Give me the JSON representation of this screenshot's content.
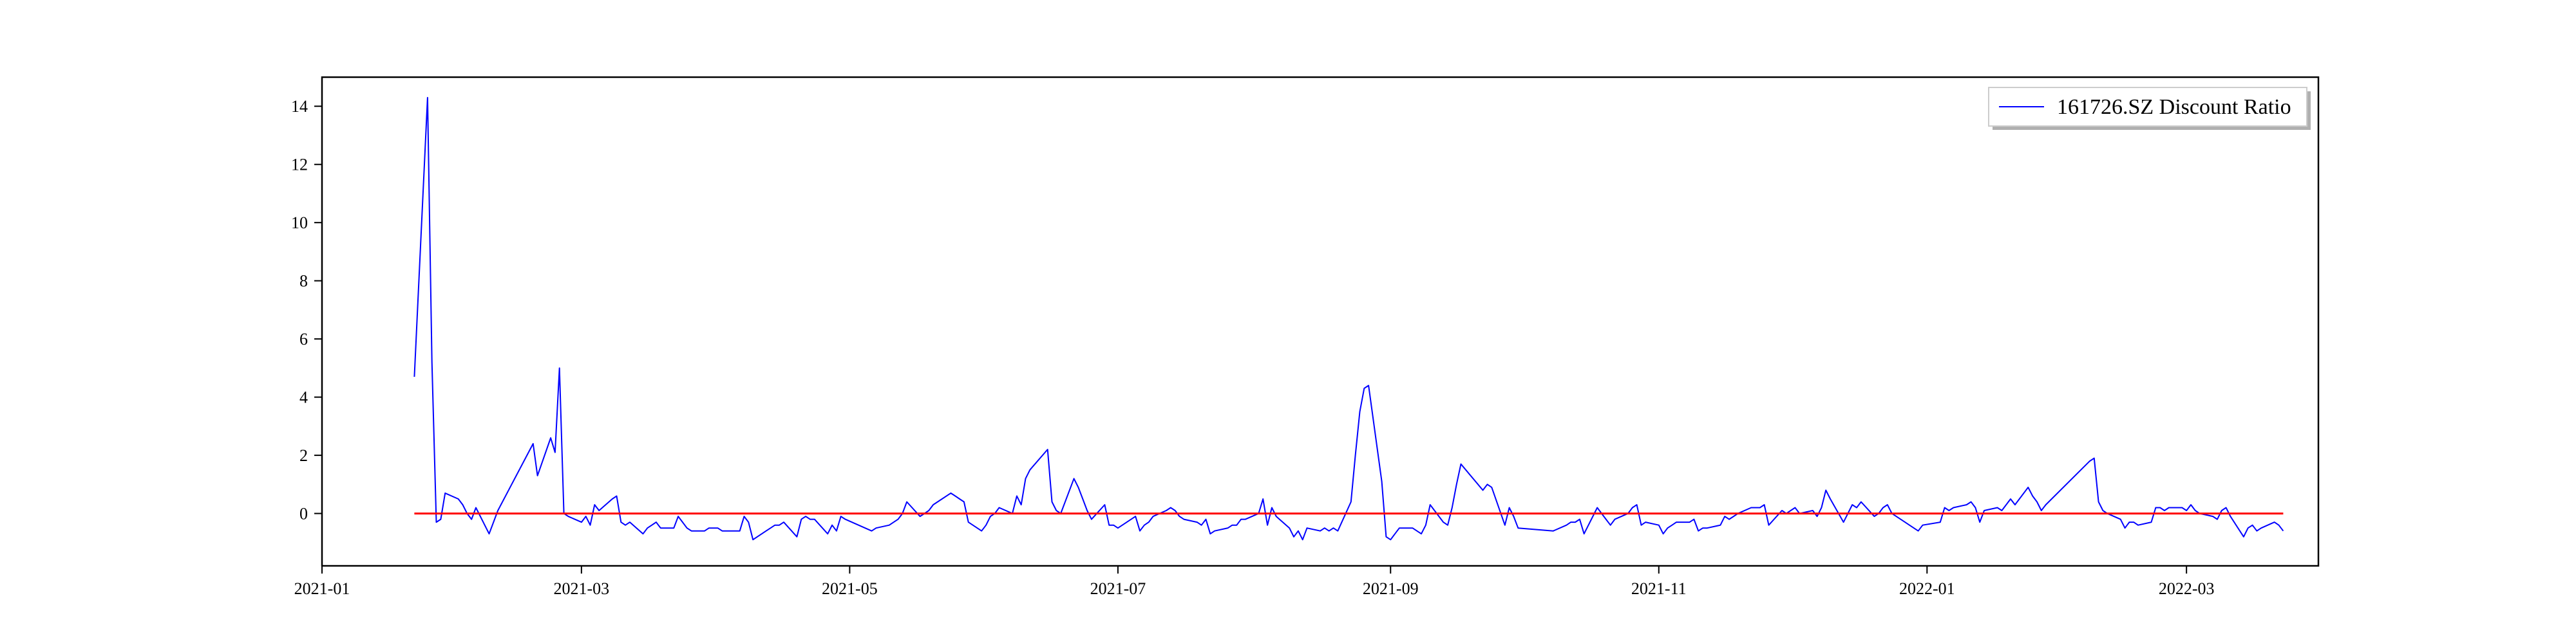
{
  "chart_data": {
    "type": "line",
    "title": "",
    "xlabel": "",
    "ylabel": "",
    "xlim": [
      "2021-01-01",
      "2022-03-31"
    ],
    "ylim": [
      -1.8,
      15
    ],
    "x_ticks": [
      "2021-01",
      "2021-03",
      "2021-05",
      "2021-07",
      "2021-09",
      "2021-11",
      "2022-01",
      "2022-03"
    ],
    "y_ticks": [
      0,
      2,
      4,
      6,
      8,
      10,
      12,
      14
    ],
    "legend": {
      "position": "top-right",
      "entries": [
        "161726.SZ Discount Ratio"
      ]
    },
    "grid": false,
    "series": [
      {
        "name": "161726.SZ Discount Ratio",
        "color": "#0000ff",
        "points": [
          [
            "2021-01-22",
            4.7
          ],
          [
            "2021-01-25",
            14.3
          ],
          [
            "2021-01-26",
            5.2
          ],
          [
            "2021-01-27",
            -0.3
          ],
          [
            "2021-01-28",
            -0.2
          ],
          [
            "2021-01-29",
            0.7
          ],
          [
            "2021-02-01",
            0.5
          ],
          [
            "2021-02-02",
            0.3
          ],
          [
            "2021-02-03",
            0.0
          ],
          [
            "2021-02-04",
            -0.2
          ],
          [
            "2021-02-05",
            0.2
          ],
          [
            "2021-02-08",
            -0.7
          ],
          [
            "2021-02-09",
            -0.3
          ],
          [
            "2021-02-10",
            0.1
          ],
          [
            "2021-02-18",
            2.4
          ],
          [
            "2021-02-19",
            1.3
          ],
          [
            "2021-02-22",
            2.6
          ],
          [
            "2021-02-23",
            2.1
          ],
          [
            "2021-02-24",
            5.0
          ],
          [
            "2021-02-25",
            0.0
          ],
          [
            "2021-02-26",
            -0.1
          ],
          [
            "2021-03-01",
            -0.3
          ],
          [
            "2021-03-02",
            -0.1
          ],
          [
            "2021-03-03",
            -0.4
          ],
          [
            "2021-03-04",
            0.3
          ],
          [
            "2021-03-05",
            0.1
          ],
          [
            "2021-03-08",
            0.5
          ],
          [
            "2021-03-09",
            0.6
          ],
          [
            "2021-03-10",
            -0.3
          ],
          [
            "2021-03-11",
            -0.4
          ],
          [
            "2021-03-12",
            -0.3
          ],
          [
            "2021-03-15",
            -0.7
          ],
          [
            "2021-03-16",
            -0.5
          ],
          [
            "2021-03-17",
            -0.4
          ],
          [
            "2021-03-18",
            -0.3
          ],
          [
            "2021-03-19",
            -0.5
          ],
          [
            "2021-03-22",
            -0.5
          ],
          [
            "2021-03-23",
            -0.1
          ],
          [
            "2021-03-24",
            -0.3
          ],
          [
            "2021-03-25",
            -0.5
          ],
          [
            "2021-03-26",
            -0.6
          ],
          [
            "2021-03-29",
            -0.6
          ],
          [
            "2021-03-30",
            -0.5
          ],
          [
            "2021-03-31",
            -0.5
          ],
          [
            "2021-04-01",
            -0.5
          ],
          [
            "2021-04-02",
            -0.6
          ],
          [
            "2021-04-06",
            -0.6
          ],
          [
            "2021-04-07",
            -0.1
          ],
          [
            "2021-04-08",
            -0.3
          ],
          [
            "2021-04-09",
            -0.9
          ],
          [
            "2021-04-12",
            -0.6
          ],
          [
            "2021-04-13",
            -0.5
          ],
          [
            "2021-04-14",
            -0.4
          ],
          [
            "2021-04-15",
            -0.4
          ],
          [
            "2021-04-16",
            -0.3
          ],
          [
            "2021-04-19",
            -0.8
          ],
          [
            "2021-04-20",
            -0.2
          ],
          [
            "2021-04-21",
            -0.1
          ],
          [
            "2021-04-22",
            -0.2
          ],
          [
            "2021-04-23",
            -0.2
          ],
          [
            "2021-04-26",
            -0.7
          ],
          [
            "2021-04-27",
            -0.4
          ],
          [
            "2021-04-28",
            -0.6
          ],
          [
            "2021-04-29",
            -0.1
          ],
          [
            "2021-04-30",
            -0.2
          ],
          [
            "2021-05-06",
            -0.6
          ],
          [
            "2021-05-07",
            -0.5
          ],
          [
            "2021-05-10",
            -0.4
          ],
          [
            "2021-05-11",
            -0.3
          ],
          [
            "2021-05-12",
            -0.2
          ],
          [
            "2021-05-13",
            0.0
          ],
          [
            "2021-05-14",
            0.4
          ],
          [
            "2021-05-17",
            -0.1
          ],
          [
            "2021-05-18",
            0.0
          ],
          [
            "2021-05-19",
            0.1
          ],
          [
            "2021-05-20",
            0.3
          ],
          [
            "2021-05-21",
            0.4
          ],
          [
            "2021-05-24",
            0.7
          ],
          [
            "2021-05-25",
            0.6
          ],
          [
            "2021-05-26",
            0.5
          ],
          [
            "2021-05-27",
            0.4
          ],
          [
            "2021-05-28",
            -0.3
          ],
          [
            "2021-05-31",
            -0.6
          ],
          [
            "2021-06-01",
            -0.4
          ],
          [
            "2021-06-02",
            -0.1
          ],
          [
            "2021-06-03",
            0.0
          ],
          [
            "2021-06-04",
            0.2
          ],
          [
            "2021-06-07",
            0.0
          ],
          [
            "2021-06-08",
            0.6
          ],
          [
            "2021-06-09",
            0.3
          ],
          [
            "2021-06-10",
            1.2
          ],
          [
            "2021-06-11",
            1.5
          ],
          [
            "2021-06-15",
            2.2
          ],
          [
            "2021-06-16",
            0.4
          ],
          [
            "2021-06-17",
            0.1
          ],
          [
            "2021-06-18",
            0.0
          ],
          [
            "2021-06-21",
            1.2
          ],
          [
            "2021-06-22",
            0.9
          ],
          [
            "2021-06-23",
            0.5
          ],
          [
            "2021-06-24",
            0.1
          ],
          [
            "2021-06-25",
            -0.2
          ],
          [
            "2021-06-28",
            0.3
          ],
          [
            "2021-06-29",
            -0.4
          ],
          [
            "2021-06-30",
            -0.4
          ],
          [
            "2021-07-01",
            -0.5
          ],
          [
            "2021-07-02",
            -0.4
          ],
          [
            "2021-07-05",
            -0.1
          ],
          [
            "2021-07-06",
            -0.6
          ],
          [
            "2021-07-07",
            -0.4
          ],
          [
            "2021-07-08",
            -0.3
          ],
          [
            "2021-07-09",
            -0.1
          ],
          [
            "2021-07-12",
            0.1
          ],
          [
            "2021-07-13",
            0.2
          ],
          [
            "2021-07-14",
            0.1
          ],
          [
            "2021-07-15",
            -0.1
          ],
          [
            "2021-07-16",
            -0.2
          ],
          [
            "2021-07-19",
            -0.3
          ],
          [
            "2021-07-20",
            -0.4
          ],
          [
            "2021-07-21",
            -0.2
          ],
          [
            "2021-07-22",
            -0.7
          ],
          [
            "2021-07-23",
            -0.6
          ],
          [
            "2021-07-26",
            -0.5
          ],
          [
            "2021-07-27",
            -0.4
          ],
          [
            "2021-07-28",
            -0.4
          ],
          [
            "2021-07-29",
            -0.2
          ],
          [
            "2021-07-30",
            -0.2
          ],
          [
            "2021-08-02",
            0.0
          ],
          [
            "2021-08-03",
            0.5
          ],
          [
            "2021-08-04",
            -0.4
          ],
          [
            "2021-08-05",
            0.2
          ],
          [
            "2021-08-06",
            -0.1
          ],
          [
            "2021-08-09",
            -0.5
          ],
          [
            "2021-08-10",
            -0.8
          ],
          [
            "2021-08-11",
            -0.6
          ],
          [
            "2021-08-12",
            -0.9
          ],
          [
            "2021-08-13",
            -0.5
          ],
          [
            "2021-08-16",
            -0.6
          ],
          [
            "2021-08-17",
            -0.5
          ],
          [
            "2021-08-18",
            -0.6
          ],
          [
            "2021-08-19",
            -0.5
          ],
          [
            "2021-08-20",
            -0.6
          ],
          [
            "2021-08-23",
            0.4
          ],
          [
            "2021-08-24",
            2.0
          ],
          [
            "2021-08-25",
            3.5
          ],
          [
            "2021-08-26",
            4.3
          ],
          [
            "2021-08-27",
            4.4
          ],
          [
            "2021-08-30",
            1.1
          ],
          [
            "2021-08-31",
            -0.8
          ],
          [
            "2021-09-01",
            -0.9
          ],
          [
            "2021-09-02",
            -0.7
          ],
          [
            "2021-09-03",
            -0.5
          ],
          [
            "2021-09-06",
            -0.5
          ],
          [
            "2021-09-07",
            -0.6
          ],
          [
            "2021-09-08",
            -0.7
          ],
          [
            "2021-09-09",
            -0.4
          ],
          [
            "2021-09-10",
            0.3
          ],
          [
            "2021-09-13",
            -0.3
          ],
          [
            "2021-09-14",
            -0.4
          ],
          [
            "2021-09-15",
            0.2
          ],
          [
            "2021-09-16",
            1.0
          ],
          [
            "2021-09-17",
            1.7
          ],
          [
            "2021-09-22",
            0.8
          ],
          [
            "2021-09-23",
            1.0
          ],
          [
            "2021-09-24",
            0.9
          ],
          [
            "2021-09-27",
            -0.4
          ],
          [
            "2021-09-28",
            0.2
          ],
          [
            "2021-09-29",
            -0.1
          ],
          [
            "2021-09-30",
            -0.5
          ],
          [
            "2021-10-08",
            -0.6
          ],
          [
            "2021-10-11",
            -0.4
          ],
          [
            "2021-10-12",
            -0.3
          ],
          [
            "2021-10-13",
            -0.3
          ],
          [
            "2021-10-14",
            -0.2
          ],
          [
            "2021-10-15",
            -0.7
          ],
          [
            "2021-10-18",
            0.2
          ],
          [
            "2021-10-19",
            0.0
          ],
          [
            "2021-10-20",
            -0.2
          ],
          [
            "2021-10-21",
            -0.4
          ],
          [
            "2021-10-22",
            -0.2
          ],
          [
            "2021-10-25",
            0.0
          ],
          [
            "2021-10-26",
            0.2
          ],
          [
            "2021-10-27",
            0.3
          ],
          [
            "2021-10-28",
            -0.4
          ],
          [
            "2021-10-29",
            -0.3
          ],
          [
            "2021-11-01",
            -0.4
          ],
          [
            "2021-11-02",
            -0.7
          ],
          [
            "2021-11-03",
            -0.5
          ],
          [
            "2021-11-04",
            -0.4
          ],
          [
            "2021-11-05",
            -0.3
          ],
          [
            "2021-11-08",
            -0.3
          ],
          [
            "2021-11-09",
            -0.2
          ],
          [
            "2021-11-10",
            -0.6
          ],
          [
            "2021-11-11",
            -0.5
          ],
          [
            "2021-11-12",
            -0.5
          ],
          [
            "2021-11-15",
            -0.4
          ],
          [
            "2021-11-16",
            -0.1
          ],
          [
            "2021-11-17",
            -0.2
          ],
          [
            "2021-11-18",
            -0.1
          ],
          [
            "2021-11-19",
            0.0
          ],
          [
            "2021-11-22",
            0.2
          ],
          [
            "2021-11-23",
            0.2
          ],
          [
            "2021-11-24",
            0.2
          ],
          [
            "2021-11-25",
            0.3
          ],
          [
            "2021-11-26",
            -0.4
          ],
          [
            "2021-11-29",
            0.1
          ],
          [
            "2021-11-30",
            0.0
          ],
          [
            "2021-12-01",
            0.1
          ],
          [
            "2021-12-02",
            0.2
          ],
          [
            "2021-12-03",
            0.0
          ],
          [
            "2021-12-06",
            0.1
          ],
          [
            "2021-12-07",
            -0.1
          ],
          [
            "2021-12-08",
            0.2
          ],
          [
            "2021-12-09",
            0.8
          ],
          [
            "2021-12-10",
            0.5
          ],
          [
            "2021-12-13",
            -0.3
          ],
          [
            "2021-12-14",
            0.0
          ],
          [
            "2021-12-15",
            0.3
          ],
          [
            "2021-12-16",
            0.2
          ],
          [
            "2021-12-17",
            0.4
          ],
          [
            "2021-12-20",
            -0.1
          ],
          [
            "2021-12-21",
            0.0
          ],
          [
            "2021-12-22",
            0.2
          ],
          [
            "2021-12-23",
            0.3
          ],
          [
            "2021-12-24",
            0.0
          ],
          [
            "2021-12-27",
            -0.3
          ],
          [
            "2021-12-28",
            -0.4
          ],
          [
            "2021-12-29",
            -0.5
          ],
          [
            "2021-12-30",
            -0.6
          ],
          [
            "2021-12-31",
            -0.4
          ],
          [
            "2022-01-04",
            -0.3
          ],
          [
            "2022-01-05",
            0.2
          ],
          [
            "2022-01-06",
            0.1
          ],
          [
            "2022-01-07",
            0.2
          ],
          [
            "2022-01-10",
            0.3
          ],
          [
            "2022-01-11",
            0.4
          ],
          [
            "2022-01-12",
            0.2
          ],
          [
            "2022-01-13",
            -0.3
          ],
          [
            "2022-01-14",
            0.1
          ],
          [
            "2022-01-17",
            0.2
          ],
          [
            "2022-01-18",
            0.1
          ],
          [
            "2022-01-19",
            0.3
          ],
          [
            "2022-01-20",
            0.5
          ],
          [
            "2022-01-21",
            0.3
          ],
          [
            "2022-01-24",
            0.9
          ],
          [
            "2022-01-25",
            0.6
          ],
          [
            "2022-01-26",
            0.4
          ],
          [
            "2022-01-27",
            0.1
          ],
          [
            "2022-01-28",
            0.3
          ],
          [
            "2022-02-07",
            1.8
          ],
          [
            "2022-02-08",
            1.9
          ],
          [
            "2022-02-09",
            0.4
          ],
          [
            "2022-02-10",
            0.1
          ],
          [
            "2022-02-11",
            0.0
          ],
          [
            "2022-02-14",
            -0.2
          ],
          [
            "2022-02-15",
            -0.5
          ],
          [
            "2022-02-16",
            -0.3
          ],
          [
            "2022-02-17",
            -0.3
          ],
          [
            "2022-02-18",
            -0.4
          ],
          [
            "2022-02-21",
            -0.3
          ],
          [
            "2022-02-22",
            0.2
          ],
          [
            "2022-02-23",
            0.2
          ],
          [
            "2022-02-24",
            0.1
          ],
          [
            "2022-02-25",
            0.2
          ],
          [
            "2022-02-28",
            0.2
          ],
          [
            "2022-03-01",
            0.1
          ],
          [
            "2022-03-02",
            0.3
          ],
          [
            "2022-03-03",
            0.1
          ],
          [
            "2022-03-04",
            0.0
          ],
          [
            "2022-03-07",
            -0.1
          ],
          [
            "2022-03-08",
            -0.2
          ],
          [
            "2022-03-09",
            0.1
          ],
          [
            "2022-03-10",
            0.2
          ],
          [
            "2022-03-11",
            -0.1
          ],
          [
            "2022-03-14",
            -0.8
          ],
          [
            "2022-03-15",
            -0.5
          ],
          [
            "2022-03-16",
            -0.4
          ],
          [
            "2022-03-17",
            -0.6
          ],
          [
            "2022-03-18",
            -0.5
          ],
          [
            "2022-03-21",
            -0.3
          ],
          [
            "2022-03-22",
            -0.4
          ],
          [
            "2022-03-23",
            -0.6
          ]
        ]
      },
      {
        "color": "#ff0000",
        "points": [
          [
            "2021-01-22",
            0.0
          ],
          [
            "2022-03-23",
            0.0
          ]
        ]
      }
    ]
  }
}
